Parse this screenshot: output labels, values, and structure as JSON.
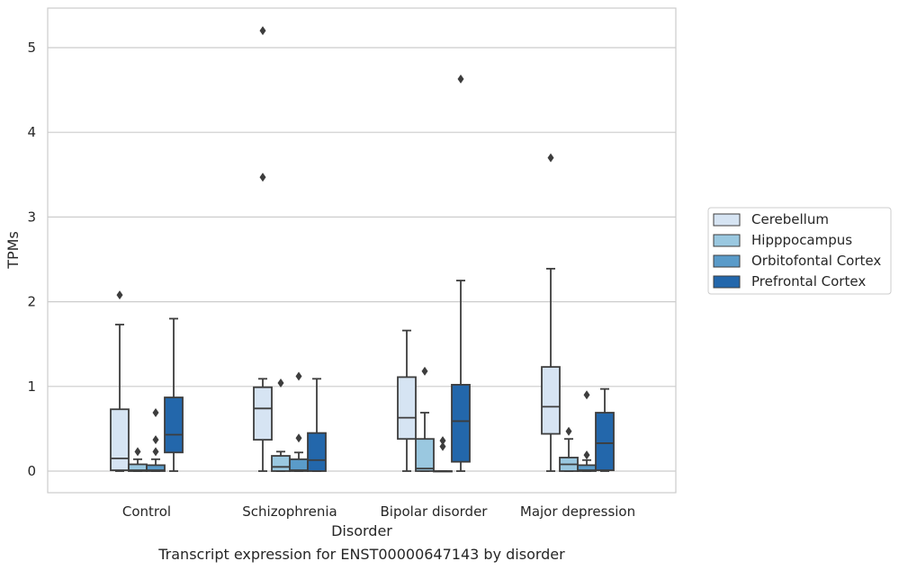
{
  "chart_data": {
    "type": "box",
    "title": "",
    "caption": "Transcript expression for ENST00000647143 by disorder",
    "xlabel": "Disorder",
    "ylabel": "TPMs",
    "ylim": [
      -0.25,
      5.55
    ],
    "yticks": [
      "0",
      "1",
      "2",
      "3",
      "4",
      "5"
    ],
    "categories": [
      "Control",
      "Schizophrenia",
      "Bipolar disorder",
      "Major depression"
    ],
    "grid": "horizontal",
    "legend_position": "right",
    "series": [
      {
        "name": "Cerebellum",
        "color": "#d6e4f3",
        "boxes": [
          {
            "q1": 0.01,
            "median": 0.15,
            "q3": 0.73,
            "whisker_low": 0.0,
            "whisker_high": 1.73,
            "outliers": [
              2.08
            ]
          },
          {
            "q1": 0.37,
            "median": 0.74,
            "q3": 0.99,
            "whisker_low": 0.0,
            "whisker_high": 1.09,
            "outliers": [
              3.47,
              5.2
            ]
          },
          {
            "q1": 0.38,
            "median": 0.63,
            "q3": 1.11,
            "whisker_low": 0.0,
            "whisker_high": 1.66,
            "outliers": []
          },
          {
            "q1": 0.44,
            "median": 0.76,
            "q3": 1.23,
            "whisker_low": 0.0,
            "whisker_high": 2.39,
            "outliers": [
              3.7
            ]
          }
        ]
      },
      {
        "name": "Hipppocampus",
        "color": "#9ac8e0",
        "boxes": [
          {
            "q1": 0.0,
            "median": 0.01,
            "q3": 0.08,
            "whisker_low": 0.0,
            "whisker_high": 0.14,
            "outliers": [
              0.23
            ]
          },
          {
            "q1": 0.0,
            "median": 0.05,
            "q3": 0.18,
            "whisker_low": 0.0,
            "whisker_high": 0.23,
            "outliers": [
              1.04
            ]
          },
          {
            "q1": 0.0,
            "median": 0.03,
            "q3": 0.38,
            "whisker_low": 0.0,
            "whisker_high": 0.69,
            "outliers": [
              1.18
            ]
          },
          {
            "q1": 0.0,
            "median": 0.08,
            "q3": 0.16,
            "whisker_low": 0.0,
            "whisker_high": 0.38,
            "outliers": [
              0.47
            ]
          }
        ]
      },
      {
        "name": "Orbitofontal Cortex",
        "color": "#5a9bc9",
        "boxes": [
          {
            "q1": 0.0,
            "median": 0.01,
            "q3": 0.07,
            "whisker_low": 0.0,
            "whisker_high": 0.14,
            "outliers": [
              0.23,
              0.37,
              0.69
            ]
          },
          {
            "q1": 0.0,
            "median": 0.01,
            "q3": 0.14,
            "whisker_low": 0.0,
            "whisker_high": 0.22,
            "outliers": [
              0.39,
              1.12
            ]
          },
          {
            "q1": 0.0,
            "median": 0.0,
            "q3": 0.0,
            "whisker_low": 0.0,
            "whisker_high": 0.0,
            "outliers": [
              0.29,
              0.36
            ]
          },
          {
            "q1": 0.0,
            "median": 0.01,
            "q3": 0.07,
            "whisker_low": 0.0,
            "whisker_high": 0.13,
            "outliers": [
              0.19,
              0.9
            ]
          }
        ]
      },
      {
        "name": "Prefrontal Cortex",
        "color": "#2367ab",
        "boxes": [
          {
            "q1": 0.22,
            "median": 0.43,
            "q3": 0.87,
            "whisker_low": 0.0,
            "whisker_high": 1.8,
            "outliers": []
          },
          {
            "q1": 0.0,
            "median": 0.13,
            "q3": 0.45,
            "whisker_low": 0.0,
            "whisker_high": 1.09,
            "outliers": []
          },
          {
            "q1": 0.11,
            "median": 0.59,
            "q3": 1.02,
            "whisker_low": 0.0,
            "whisker_high": 2.25,
            "outliers": [
              4.63
            ]
          },
          {
            "q1": 0.01,
            "median": 0.33,
            "q3": 0.69,
            "whisker_low": 0.0,
            "whisker_high": 0.97,
            "outliers": []
          }
        ]
      }
    ]
  }
}
